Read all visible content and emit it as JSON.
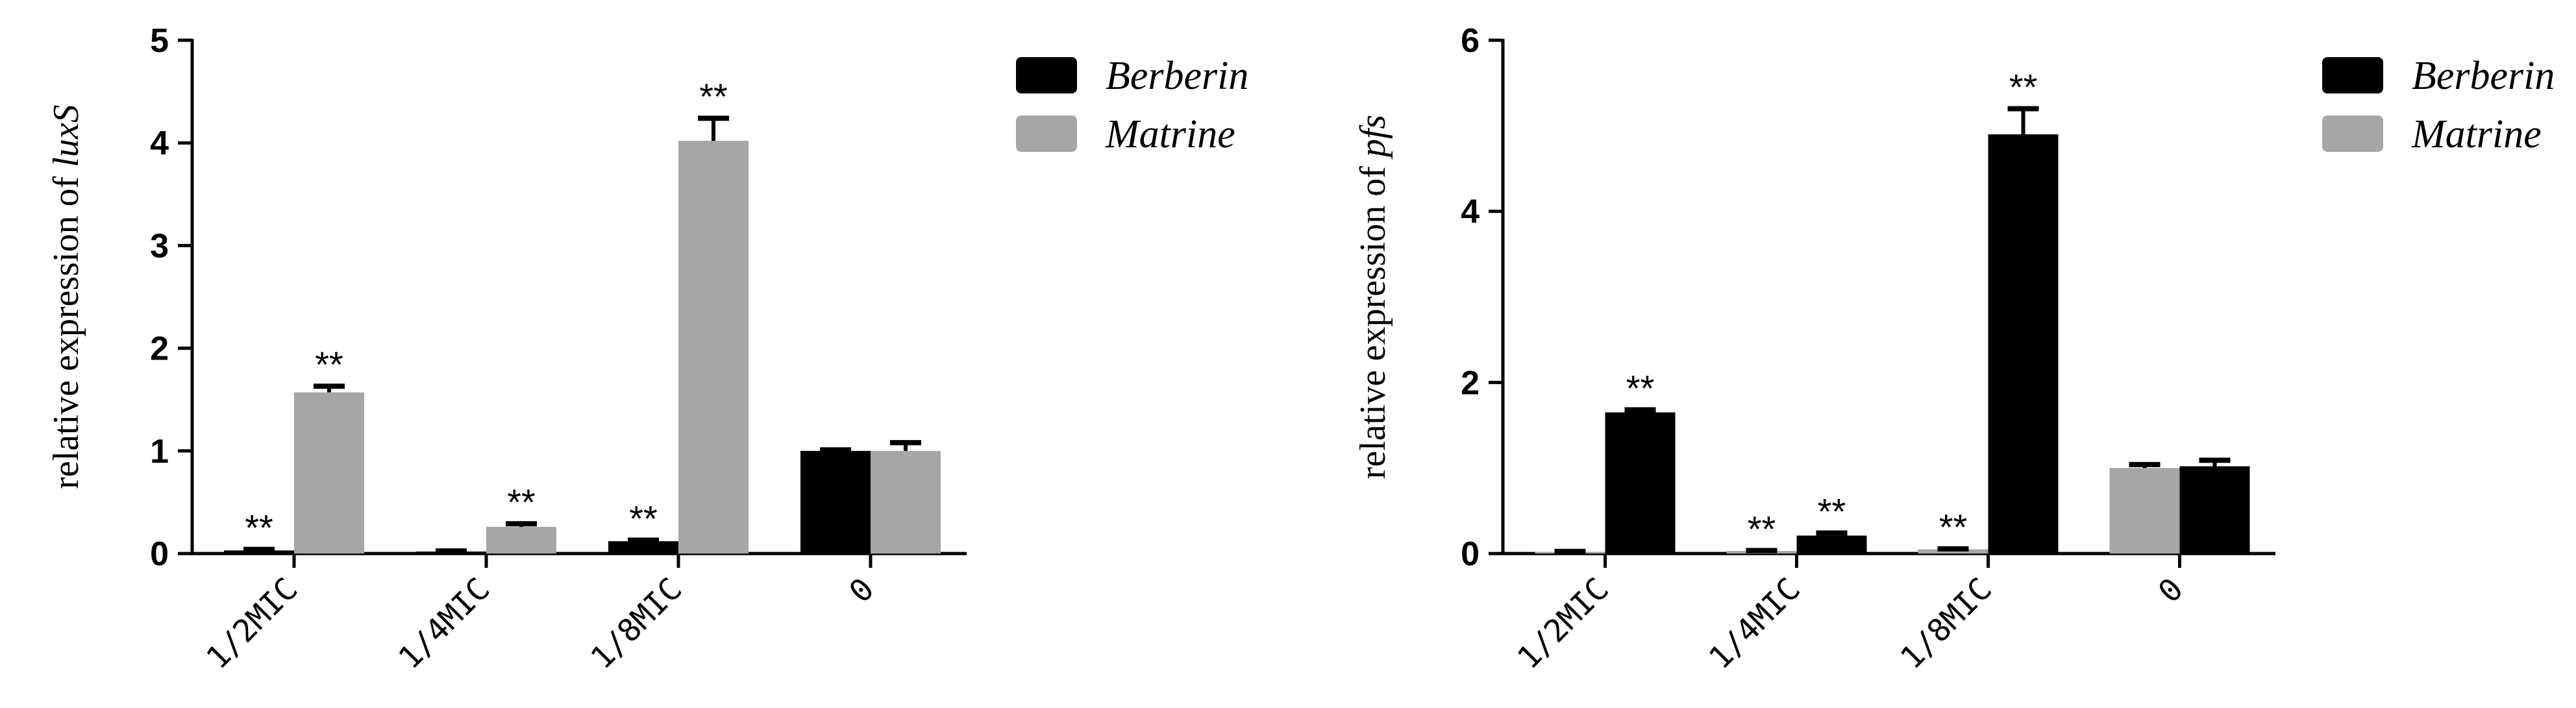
{
  "colors": {
    "Berberin": "#000000",
    "Matrine": "#a6a6a6"
  },
  "chart_data": [
    {
      "type": "bar",
      "ylabel_prefix": "relative expression of ",
      "ylabel_gene": "luxS",
      "categories": [
        "1/2MIC",
        "1/4MIC",
        "1/8MIC",
        "0"
      ],
      "ylim": [
        0,
        5
      ],
      "yticks": [
        "0",
        "1",
        "2",
        "3",
        "4",
        "5"
      ],
      "legend_position": "top-right",
      "series": [
        {
          "name": "Berberin",
          "values": [
            0.03,
            0.02,
            0.12,
            1.0
          ],
          "errors": [
            0.01,
            0.005,
            0.01,
            0.01
          ],
          "labels": [
            "**",
            "",
            "**",
            ""
          ]
        },
        {
          "name": "Matrine",
          "values": [
            1.57,
            0.26,
            4.02,
            1.0
          ],
          "errors": [
            0.06,
            0.03,
            0.22,
            0.08
          ],
          "labels": [
            "**",
            "**",
            "**",
            ""
          ]
        }
      ]
    },
    {
      "type": "bar",
      "ylabel_prefix": "relative expression of ",
      "ylabel_gene": "pfs",
      "categories": [
        "1/2MIC",
        "1/4MIC",
        "1/8MIC",
        "0"
      ],
      "ylim": [
        0,
        6
      ],
      "yticks": [
        "0",
        "2",
        "4",
        "6"
      ],
      "legend_position": "top-right",
      "series": [
        {
          "name": "Matrine",
          "values": [
            0.02,
            0.03,
            0.05,
            1.0
          ],
          "errors": [
            0.005,
            0.005,
            0.005,
            0.04
          ],
          "labels": [
            "",
            "**",
            "**",
            ""
          ]
        },
        {
          "name": "Berberin",
          "values": [
            1.65,
            0.21,
            4.9,
            1.02
          ],
          "errors": [
            0.03,
            0.03,
            0.3,
            0.07
          ],
          "labels": [
            "**",
            "**",
            "**",
            ""
          ]
        }
      ]
    }
  ]
}
